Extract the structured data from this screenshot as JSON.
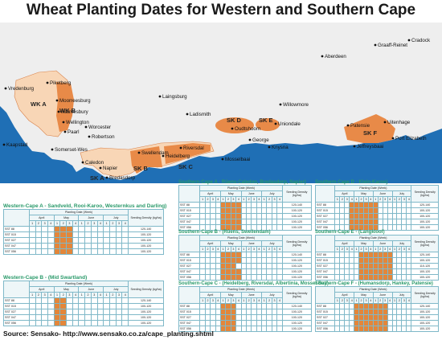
{
  "title": "Wheat Planting Dates for Western and Southern Cape",
  "source": "Source: Sensako- http://www.sensako.co.za/cape_planting.shtml",
  "colors": {
    "sea": "#1f6fb5",
    "land": "#eeeeee",
    "region_light": "#f8d6b6",
    "region_dark": "#e88a48",
    "cell_on": "#e3863a"
  },
  "map": {
    "places": [
      "Cradock",
      "Graaff-Reinet",
      "Aberdeen",
      "Vredenburg",
      "Piketberg",
      "Moorreesburg",
      "Malmesbury",
      "Wellington",
      "Paarl",
      "Worcester",
      "Robertson",
      "Laingsburg",
      "Ladismith",
      "Oudtshoorn",
      "Uniondale",
      "Willowmore",
      "George",
      "Knysna",
      "Kaapstad",
      "Somerset-Wes",
      "Caledon",
      "Swellendam",
      "Riversdal",
      "Heidelberg",
      "Mosselbaai",
      "Napier",
      "Bredasdorp",
      "Patensie",
      "Uitenhage",
      "Port Elizabeth",
      "Jeffreysbaai"
    ],
    "regions": [
      "WK A",
      "WK B",
      "SK A",
      "SK B",
      "SK C",
      "SK D",
      "SK E",
      "SK F"
    ]
  },
  "tables": {
    "headers": {
      "planting": "Planting Date (Week)",
      "density": "Seeding Density (kg/ha)",
      "months": [
        "April",
        "May",
        "June",
        "July"
      ],
      "weeks": [
        "1",
        "2",
        "3",
        "4",
        "1",
        "2",
        "3",
        "4",
        "1",
        "2",
        "3",
        "4",
        "1",
        "2",
        "3",
        "4"
      ]
    },
    "list": [
      {
        "title": "Western-Cape A - Sandveld, Rooi-Karoo, Westernkus and Darling)",
        "rows": [
          {
            "cultivar": "SST 88",
            "on": [
              4,
              5,
              6
            ],
            "density": "120-140"
          },
          {
            "cultivar": "SST 015",
            "on": [
              4,
              5,
              6
            ],
            "density": "100-120"
          },
          {
            "cultivar": "SST 027",
            "on": [
              4,
              5,
              6
            ],
            "density": "100-120"
          },
          {
            "cultivar": "SST 047",
            "on": [
              4,
              5,
              6
            ],
            "density": "100-120"
          },
          {
            "cultivar": "SST 056",
            "on": [
              4,
              5,
              6
            ],
            "density": "100-120"
          }
        ]
      },
      {
        "title": "Western-Cape B - (Mid Swartland)",
        "rows": [
          {
            "cultivar": "SST 88",
            "on": [
              4,
              5
            ],
            "density": "120-140"
          },
          {
            "cultivar": "SST 015",
            "on": [
              4,
              5
            ],
            "density": "100-120"
          },
          {
            "cultivar": "SST 027",
            "on": [
              4,
              5
            ],
            "density": "100-120"
          },
          {
            "cultivar": "SST 047",
            "on": [
              4,
              5
            ],
            "density": "100-120"
          },
          {
            "cultivar": "SST 056",
            "on": [
              4,
              5
            ],
            "density": "100-120"
          }
        ]
      },
      {
        "title": "Southern-Cape A - Rûens-Caledon, Bredasdorp, Napier)",
        "rows": [
          {
            "cultivar": "SST 88",
            "on": [
              4,
              5,
              6,
              7
            ],
            "density": "120-140"
          },
          {
            "cultivar": "SST 015",
            "on": [
              4,
              5,
              6,
              7
            ],
            "density": "100-120"
          },
          {
            "cultivar": "SST 027",
            "on": [
              4,
              5,
              6,
              7
            ],
            "density": "100-120"
          },
          {
            "cultivar": "SST 047",
            "on": [
              4,
              5,
              6,
              7
            ],
            "density": "100-120"
          },
          {
            "cultivar": "SST 056",
            "on": [
              4,
              5,
              6,
              7
            ],
            "density": "100-120"
          }
        ]
      },
      {
        "title": "Southern-Cape B - (Rûens, Swellendam)",
        "rows": [
          {
            "cultivar": "SST 88",
            "on": [
              4,
              5,
              6,
              7
            ],
            "density": "120-140"
          },
          {
            "cultivar": "SST 015",
            "on": [
              4,
              5,
              6,
              7
            ],
            "density": "100-120"
          },
          {
            "cultivar": "SST 027",
            "on": [
              4,
              5,
              6
            ],
            "density": "100-120"
          },
          {
            "cultivar": "SST 047",
            "on": [
              4,
              5,
              6,
              7
            ],
            "density": "100-120"
          },
          {
            "cultivar": "SST 056",
            "on": [
              4,
              5,
              6,
              7
            ],
            "density": "100-120"
          }
        ]
      },
      {
        "title": "Southern-Cape C - (Heidelberg, Riversdal, Albertinia, Mossel Bay)",
        "rows": [
          {
            "cultivar": "SST 88",
            "on": [
              4,
              5,
              6
            ],
            "density": "120-140"
          },
          {
            "cultivar": "SST 015",
            "on": [
              4,
              5,
              6
            ],
            "density": "100-120"
          },
          {
            "cultivar": "SST 027",
            "on": [
              4,
              5,
              6
            ],
            "density": "100-120"
          },
          {
            "cultivar": "SST 047",
            "on": [
              4,
              5,
              6
            ],
            "density": "100-120"
          },
          {
            "cultivar": "SST 056",
            "on": [
              4,
              5,
              6
            ],
            "density": "100-120"
          }
        ]
      },
      {
        "title": "Southern-Cape D - Klein-Karoo)",
        "rows": [
          {
            "cultivar": "SST 88",
            "on": [
              3,
              4,
              5,
              6,
              7,
              8
            ],
            "density": "120-140"
          },
          {
            "cultivar": "SST 015",
            "on": [
              3,
              4,
              5,
              6,
              7,
              8
            ],
            "density": "100-120"
          },
          {
            "cultivar": "SST 027",
            "on": [
              3,
              4,
              5,
              6,
              7,
              8
            ],
            "density": "100-120"
          },
          {
            "cultivar": "SST 047",
            "on": [
              3,
              4,
              5,
              6,
              7,
              8
            ],
            "density": "100-120"
          },
          {
            "cultivar": "SST 056",
            "on": [
              3,
              4,
              5,
              6,
              7,
              8
            ],
            "density": "100-120"
          }
        ]
      },
      {
        "title": "Southern-Cape E - (Langkloof)",
        "rows": [
          {
            "cultivar": "SST 88",
            "on": [
              5,
              6,
              7,
              8,
              9,
              10,
              11
            ],
            "density": "120-140"
          },
          {
            "cultivar": "SST 015",
            "on": [
              5,
              6,
              7,
              8,
              9,
              10,
              11
            ],
            "density": "100-120"
          },
          {
            "cultivar": "SST 027",
            "on": [
              5,
              6,
              7,
              8,
              9,
              10,
              11
            ],
            "density": "110-120"
          },
          {
            "cultivar": "SST 047",
            "on": [
              5,
              6,
              7,
              8,
              9,
              10,
              11
            ],
            "density": "100-120"
          },
          {
            "cultivar": "SST 056",
            "on": [
              5,
              6,
              7,
              8,
              9,
              10,
              11
            ],
            "density": "100-120"
          }
        ]
      },
      {
        "title": "Southern-Cape F - (Humansdorp, Hankey, Patensie)",
        "rows": [
          {
            "cultivar": "SST 88",
            "on": [
              4,
              5,
              6,
              7,
              8,
              9,
              10
            ],
            "density": "120-140"
          },
          {
            "cultivar": "SST 015",
            "on": [
              4,
              5,
              6,
              7,
              8,
              9,
              10
            ],
            "density": "100-120"
          },
          {
            "cultivar": "SST 027",
            "on": [
              4,
              5,
              6,
              7,
              8,
              9,
              10
            ],
            "density": "100-120"
          },
          {
            "cultivar": "SST 047",
            "on": [
              4,
              5,
              6,
              7,
              8,
              9,
              10
            ],
            "density": "100-120"
          },
          {
            "cultivar": "SST 056",
            "on": [
              4,
              5,
              6,
              7,
              8,
              9,
              10
            ],
            "density": "100-120"
          }
        ]
      }
    ]
  }
}
